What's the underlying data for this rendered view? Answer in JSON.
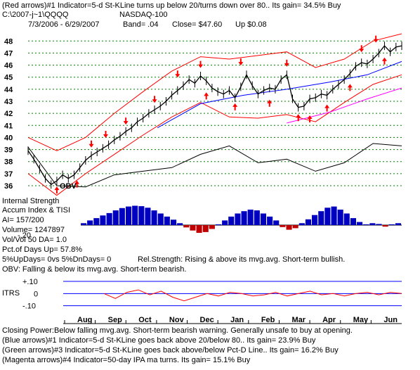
{
  "header": {
    "line1": "(Red arrows)#1 Indicator=5-d St-KLine turns up below 20/turns down over 80.. Its gain= 34.5% Buy",
    "path": "C:\\2007-j~1\\QQQQ",
    "index": "NASDAQ-100",
    "range": "7/3/2006 - 6/29/2007",
    "band": "Band= .04",
    "close": "Close= $47.60",
    "change": "Up $0.08"
  },
  "labels": {
    "obv": "OBV",
    "internal_strength": "Internal Strength",
    "accum": "Accum Index & TISI",
    "ai": "AI= 157/200",
    "volume": "Volume= 1247897",
    "volvol": "Vol/Vol 50 DA= 1.0",
    "pct_up": "Pct.of Days Up= 57.8%",
    "updays": "5%UpDays= 0vs 5%DnDays= 0",
    "rel_strength": "Rel.Strength: Rising & above its mvg.avg. Short-term bullish.",
    "obv_status": "OBV: Falling & below its mvg.avg. Short-term bearish.",
    "itrs": "ITRS",
    "neg_twenty": "-.20"
  },
  "footer": {
    "line1": "Closing Power:Below falling mvg.avg. Short-term bearish warning. Generally unsafe to buy at opening.",
    "line2": "(Blue arrows)#1 Indicator=5-d St-KLine goes back above 20/below 80.. Its gain= 23.9% Buy",
    "line3": "(Green arrows)#3 Indicator=5-d St-KLine goes back above/below Pct-D Line.. Its gain= 16.2% Buy",
    "line4": "(Magenta arrows)#4 Indicator=50-day IPA ma turns. Its gain= 15.1% Buy"
  },
  "colors": {
    "background": "#ffffff",
    "price": "#000000",
    "band": "#ff0000",
    "ma_blue": "#0000ff",
    "ma_magenta": "#ff00ff",
    "arrow": "#ff0000",
    "grid": "#008000",
    "accum": "#0000c0",
    "accum_neg": "#c00000",
    "itrs": "#ff0000",
    "axis_line": "#0000ff"
  },
  "chart_data": [
    {
      "type": "line",
      "panel": "price",
      "y_ticks": [
        48,
        47,
        46,
        45,
        44,
        43,
        42,
        41,
        40,
        39,
        38,
        37,
        36
      ],
      "ylim": [
        35.3,
        48.6
      ],
      "months": [
        "Aug",
        "Sep",
        "Oct",
        "Nov",
        "Dec",
        "Jan",
        "Feb",
        "Mar",
        "Apr",
        "May",
        "Jun"
      ],
      "price_points": [
        [
          0,
          38.9
        ],
        [
          2,
          38.2
        ],
        [
          4,
          37.4
        ],
        [
          6,
          36.6
        ],
        [
          8,
          36.1
        ],
        [
          10,
          36.4
        ],
        [
          12,
          36.9
        ],
        [
          14,
          36.6
        ],
        [
          16,
          36.9
        ],
        [
          18,
          37.5
        ],
        [
          20,
          38.1
        ],
        [
          22,
          38.5
        ],
        [
          24,
          38.8
        ],
        [
          26,
          39.1
        ],
        [
          28,
          39.4
        ],
        [
          30,
          39.8
        ],
        [
          32,
          40.1
        ],
        [
          34,
          40.5
        ],
        [
          36,
          40.8
        ],
        [
          38,
          41.3
        ],
        [
          40,
          41.6
        ],
        [
          42,
          42.0
        ],
        [
          44,
          42.3
        ],
        [
          46,
          42.6
        ],
        [
          48,
          43.0
        ],
        [
          50,
          43.5
        ],
        [
          52,
          43.9
        ],
        [
          54,
          44.3
        ],
        [
          56,
          44.8
        ],
        [
          58,
          44.5
        ],
        [
          60,
          45.1
        ],
        [
          62,
          44.7
        ],
        [
          64,
          44.1
        ],
        [
          66,
          43.8
        ],
        [
          68,
          43.6
        ],
        [
          70,
          43.9
        ],
        [
          72,
          43.3
        ],
        [
          74,
          44.2
        ],
        [
          76,
          45.2
        ],
        [
          78,
          44.3
        ],
        [
          80,
          43.6
        ],
        [
          82,
          43.9
        ],
        [
          84,
          44.1
        ],
        [
          86,
          44.0
        ],
        [
          88,
          44.8
        ],
        [
          90,
          45.2
        ],
        [
          92,
          43.2
        ],
        [
          94,
          42.5
        ],
        [
          96,
          42.6
        ],
        [
          98,
          43.2
        ],
        [
          100,
          43.3
        ],
        [
          102,
          43.6
        ],
        [
          104,
          43.5
        ],
        [
          106,
          44.0
        ],
        [
          108,
          44.4
        ],
        [
          110,
          44.8
        ],
        [
          112,
          45.3
        ],
        [
          114,
          45.9
        ],
        [
          116,
          46.2
        ],
        [
          118,
          46.1
        ],
        [
          120,
          46.5
        ],
        [
          122,
          47.0
        ],
        [
          124,
          47.6
        ],
        [
          126,
          47.1
        ],
        [
          128,
          47.5
        ],
        [
          130,
          47.6
        ]
      ],
      "upper_band": [
        [
          0,
          40.0
        ],
        [
          10,
          38.9
        ],
        [
          20,
          40.0
        ],
        [
          30,
          42.0
        ],
        [
          40,
          43.8
        ],
        [
          50,
          45.5
        ],
        [
          60,
          46.7
        ],
        [
          70,
          46.5
        ],
        [
          80,
          46.8
        ],
        [
          90,
          47.1
        ],
        [
          100,
          45.8
        ],
        [
          110,
          46.5
        ],
        [
          120,
          48.0
        ],
        [
          130,
          48.6
        ]
      ],
      "lower_band": [
        [
          0,
          37.0
        ],
        [
          10,
          35.2
        ],
        [
          20,
          37.0
        ],
        [
          30,
          38.6
        ],
        [
          40,
          40.2
        ],
        [
          50,
          41.7
        ],
        [
          60,
          42.9
        ],
        [
          70,
          41.7
        ],
        [
          80,
          41.6
        ],
        [
          90,
          41.9
        ],
        [
          100,
          41.3
        ],
        [
          110,
          42.9
        ],
        [
          120,
          44.4
        ],
        [
          130,
          45.2
        ]
      ],
      "ma_blue": [
        [
          45,
          40.8
        ],
        [
          60,
          42.8
        ],
        [
          75,
          43.5
        ],
        [
          90,
          44.0
        ],
        [
          105,
          44.6
        ],
        [
          118,
          45.2
        ],
        [
          130,
          46.3
        ]
      ],
      "ma_magenta": [
        [
          90,
          41.2
        ],
        [
          105,
          42.1
        ],
        [
          118,
          43.2
        ],
        [
          130,
          44.1
        ]
      ],
      "red_up_arrows": [
        [
          10,
          35.7
        ],
        [
          17,
          36.2
        ],
        [
          62,
          43.5
        ],
        [
          72,
          42.6
        ],
        [
          84,
          42.9
        ],
        [
          94,
          41.7
        ],
        [
          98,
          41.6
        ],
        [
          104,
          42.5
        ],
        [
          112,
          44.2
        ],
        [
          124,
          46.4
        ]
      ],
      "red_down_arrows": [
        [
          22,
          39.4
        ],
        [
          27,
          40.2
        ],
        [
          34,
          41.3
        ],
        [
          44,
          43.1
        ],
        [
          52,
          45.2
        ],
        [
          60,
          46.0
        ],
        [
          74,
          46.2
        ],
        [
          90,
          46.1
        ],
        [
          116,
          47.3
        ],
        [
          121,
          48.1
        ]
      ],
      "obv_points": [
        [
          0,
          39.2
        ],
        [
          10,
          36.0
        ],
        [
          20,
          35.9
        ],
        [
          30,
          36.9
        ],
        [
          40,
          37.2
        ],
        [
          50,
          37.5
        ],
        [
          60,
          38.6
        ],
        [
          70,
          39.3
        ],
        [
          80,
          37.9
        ],
        [
          90,
          38.2
        ],
        [
          100,
          37.2
        ],
        [
          110,
          37.9
        ],
        [
          120,
          39.5
        ],
        [
          130,
          39.3
        ]
      ]
    },
    {
      "type": "bar",
      "panel": "accumulation_index",
      "ylim": [
        -0.3,
        0.6
      ],
      "values": [
        0.05,
        0.12,
        0.18,
        0.25,
        0.31,
        0.38,
        0.44,
        0.48,
        0.5,
        0.49,
        0.45,
        0.38,
        0.3,
        0.22,
        0.14,
        0.05,
        -0.06,
        -0.14,
        -0.2,
        -0.18,
        -0.1,
        0.02,
        0.12,
        0.22,
        0.3,
        0.36,
        0.4,
        0.38,
        0.3,
        0.22,
        0.12,
        -0.05,
        -0.12,
        -0.08,
        0.05,
        0.15,
        0.26,
        0.36,
        0.45,
        0.48,
        0.4,
        0.3,
        0.18,
        0.08,
        0.02,
        0.05,
        0.03,
        -0.04,
        0.02,
        0.05
      ]
    },
    {
      "type": "line",
      "panel": "itrs",
      "y_ticks": [
        "+.10",
        "0",
        "-.10"
      ],
      "ylim": [
        -0.2,
        0.1
      ],
      "points": [
        [
          0,
          0.0
        ],
        [
          5,
          -0.04
        ],
        [
          10,
          0.01
        ],
        [
          15,
          0.03
        ],
        [
          20,
          -0.01
        ],
        [
          25,
          0.02
        ],
        [
          30,
          -0.03
        ],
        [
          35,
          -0.06
        ],
        [
          40,
          -0.03
        ],
        [
          45,
          0.0
        ],
        [
          50,
          -0.02
        ],
        [
          55,
          0.01
        ],
        [
          60,
          0.0
        ],
        [
          65,
          -0.02
        ],
        [
          70,
          -0.01
        ],
        [
          75,
          0.01
        ],
        [
          80,
          -0.02
        ],
        [
          85,
          0.0
        ],
        [
          90,
          0.02
        ],
        [
          95,
          -0.01
        ],
        [
          100,
          0.0
        ],
        [
          105,
          -0.02
        ],
        [
          110,
          0.0
        ],
        [
          115,
          0.01
        ],
        [
          120,
          -0.01
        ],
        [
          125,
          0.01
        ],
        [
          130,
          0.0
        ]
      ]
    }
  ]
}
